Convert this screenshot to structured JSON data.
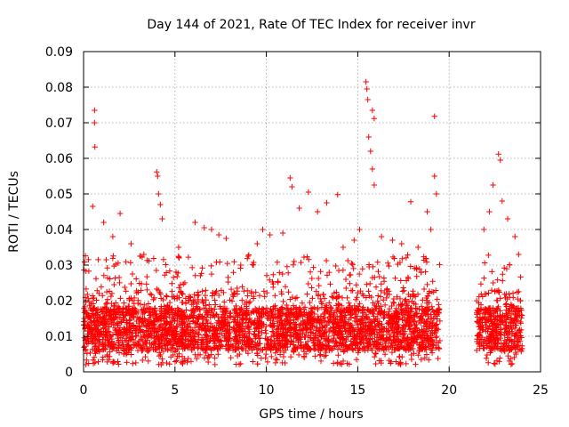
{
  "chart_data": {
    "type": "scatter",
    "title": "Day 144 of 2021, Rate Of TEC Index for receiver invr",
    "xlabel": "GPS time / hours",
    "ylabel": "ROTI / TECUs",
    "xlim": [
      0,
      25
    ],
    "ylim": [
      0,
      0.09
    ],
    "xticks": [
      0,
      5,
      10,
      15,
      20,
      25
    ],
    "xtick_labels": [
      "0",
      "5",
      "10",
      "15",
      "20",
      "25"
    ],
    "yticks": [
      0,
      0.01,
      0.02,
      0.03,
      0.04,
      0.05,
      0.06,
      0.07,
      0.08,
      0.09
    ],
    "ytick_labels": [
      "0",
      "0.01",
      "0.02",
      "0.03",
      "0.04",
      "0.05",
      "0.06",
      "0.07",
      "0.08",
      "0.09"
    ],
    "grid": true,
    "marker": "plus",
    "color": "#ff0000",
    "series": [
      {
        "name": "ROTI",
        "segments": [
          [
            0,
            19.5
          ],
          [
            21.5,
            24
          ]
        ],
        "points": [
          {
            "x": 0.6,
            "y": 0.0735
          },
          {
            "x": 0.6,
            "y": 0.07
          },
          {
            "x": 0.62,
            "y": 0.0632
          },
          {
            "x": 0.5,
            "y": 0.0465
          },
          {
            "x": 1.1,
            "y": 0.042
          },
          {
            "x": 1.6,
            "y": 0.038
          },
          {
            "x": 2.0,
            "y": 0.0445
          },
          {
            "x": 2.6,
            "y": 0.036
          },
          {
            "x": 3.3,
            "y": 0.033
          },
          {
            "x": 4.0,
            "y": 0.0562
          },
          {
            "x": 4.05,
            "y": 0.055
          },
          {
            "x": 4.1,
            "y": 0.05
          },
          {
            "x": 4.2,
            "y": 0.047
          },
          {
            "x": 4.3,
            "y": 0.043
          },
          {
            "x": 5.2,
            "y": 0.035
          },
          {
            "x": 6.1,
            "y": 0.042
          },
          {
            "x": 6.6,
            "y": 0.0405
          },
          {
            "x": 7.0,
            "y": 0.04
          },
          {
            "x": 7.4,
            "y": 0.0385
          },
          {
            "x": 7.8,
            "y": 0.0375
          },
          {
            "x": 8.6,
            "y": 0.03
          },
          {
            "x": 9.0,
            "y": 0.0325
          },
          {
            "x": 9.5,
            "y": 0.036
          },
          {
            "x": 9.8,
            "y": 0.04
          },
          {
            "x": 10.2,
            "y": 0.0385
          },
          {
            "x": 10.9,
            "y": 0.039
          },
          {
            "x": 11.3,
            "y": 0.0545
          },
          {
            "x": 11.4,
            "y": 0.052
          },
          {
            "x": 11.8,
            "y": 0.046
          },
          {
            "x": 12.3,
            "y": 0.0505
          },
          {
            "x": 12.8,
            "y": 0.045
          },
          {
            "x": 13.3,
            "y": 0.0475
          },
          {
            "x": 13.9,
            "y": 0.0498
          },
          {
            "x": 14.2,
            "y": 0.035
          },
          {
            "x": 14.8,
            "y": 0.037
          },
          {
            "x": 15.1,
            "y": 0.04
          },
          {
            "x": 15.45,
            "y": 0.0815
          },
          {
            "x": 15.5,
            "y": 0.0795
          },
          {
            "x": 15.55,
            "y": 0.0765
          },
          {
            "x": 15.6,
            "y": 0.066
          },
          {
            "x": 15.8,
            "y": 0.0735
          },
          {
            "x": 15.9,
            "y": 0.0712
          },
          {
            "x": 15.7,
            "y": 0.062
          },
          {
            "x": 15.8,
            "y": 0.057
          },
          {
            "x": 15.9,
            "y": 0.0525
          },
          {
            "x": 16.3,
            "y": 0.038
          },
          {
            "x": 16.9,
            "y": 0.037
          },
          {
            "x": 17.4,
            "y": 0.036
          },
          {
            "x": 17.9,
            "y": 0.0478
          },
          {
            "x": 18.3,
            "y": 0.035
          },
          {
            "x": 18.8,
            "y": 0.045
          },
          {
            "x": 19.2,
            "y": 0.0718
          },
          {
            "x": 19.2,
            "y": 0.055
          },
          {
            "x": 19.3,
            "y": 0.05
          },
          {
            "x": 19.0,
            "y": 0.04
          },
          {
            "x": 21.9,
            "y": 0.04
          },
          {
            "x": 22.2,
            "y": 0.045
          },
          {
            "x": 22.4,
            "y": 0.0525
          },
          {
            "x": 22.7,
            "y": 0.0612
          },
          {
            "x": 22.8,
            "y": 0.0595
          },
          {
            "x": 22.9,
            "y": 0.048
          },
          {
            "x": 23.2,
            "y": 0.043
          },
          {
            "x": 23.6,
            "y": 0.038
          },
          {
            "x": 23.8,
            "y": 0.033
          }
        ],
        "band": {
          "y_low": 0.002,
          "y_high": 0.03,
          "typical": 0.011
        }
      }
    ]
  }
}
